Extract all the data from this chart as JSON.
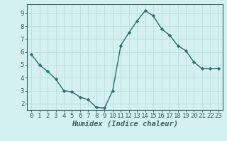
{
  "x": [
    0,
    1,
    2,
    3,
    4,
    5,
    6,
    7,
    8,
    9,
    10,
    11,
    12,
    13,
    14,
    15,
    16,
    17,
    18,
    19,
    20,
    21,
    22,
    23
  ],
  "y": [
    5.8,
    5.0,
    4.5,
    3.9,
    3.0,
    2.9,
    2.5,
    2.3,
    1.7,
    1.65,
    3.0,
    6.5,
    7.5,
    8.4,
    9.2,
    8.8,
    7.8,
    7.3,
    6.5,
    6.1,
    5.2,
    4.7,
    4.7,
    4.7
  ],
  "line_color": "#2d6e6e",
  "marker": "D",
  "marker_size": 2.2,
  "line_width": 1.0,
  "background_color": "#d4f0f0",
  "grid_color": "#b8dede",
  "xlabel": "Humidex (Indice chaleur)",
  "xlabel_style": "italic",
  "xlim": [
    -0.5,
    23.5
  ],
  "ylim": [
    1.5,
    9.7
  ],
  "xticks": [
    0,
    1,
    2,
    3,
    4,
    5,
    6,
    7,
    8,
    9,
    10,
    11,
    12,
    13,
    14,
    15,
    16,
    17,
    18,
    19,
    20,
    21,
    22,
    23
  ],
  "yticks": [
    2,
    3,
    4,
    5,
    6,
    7,
    8,
    9
  ],
  "tick_fontsize": 6.5,
  "xlabel_fontsize": 7.5,
  "axis_color": "#3a6060"
}
